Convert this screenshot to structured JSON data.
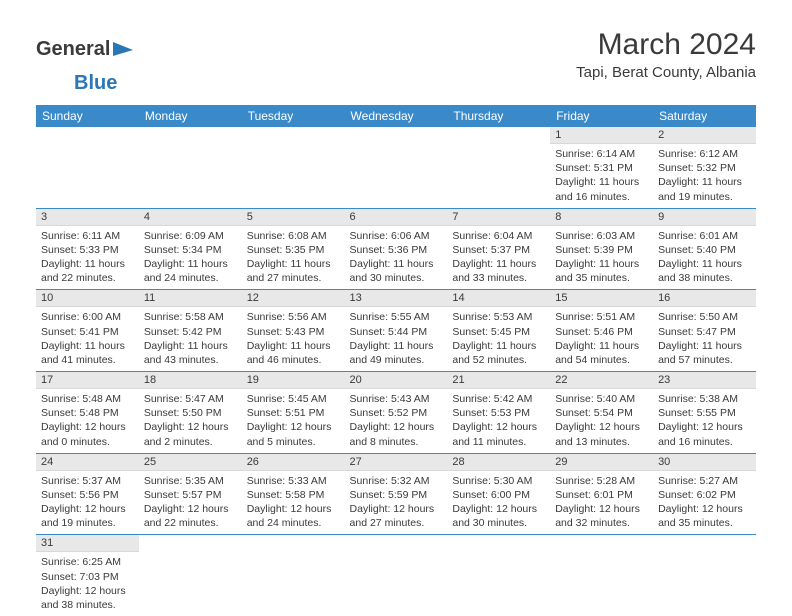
{
  "logo": {
    "text_general": "General",
    "text_blue": "Blue",
    "icon_color": "#2a77b8"
  },
  "header": {
    "title": "March 2024",
    "location": "Tapi, Berat County, Albania"
  },
  "colors": {
    "header_bg": "#3a89c9",
    "header_text": "#ffffff",
    "daynum_bg": "#e8e8e8",
    "border": "#3a89c9",
    "body_text": "#3a3a3a"
  },
  "day_labels": [
    "Sunday",
    "Monday",
    "Tuesday",
    "Wednesday",
    "Thursday",
    "Friday",
    "Saturday"
  ],
  "weeks": [
    [
      null,
      null,
      null,
      null,
      null,
      {
        "n": "1",
        "sunrise": "6:14 AM",
        "sunset": "5:31 PM",
        "dl": "11 hours and 16 minutes."
      },
      {
        "n": "2",
        "sunrise": "6:12 AM",
        "sunset": "5:32 PM",
        "dl": "11 hours and 19 minutes."
      }
    ],
    [
      {
        "n": "3",
        "sunrise": "6:11 AM",
        "sunset": "5:33 PM",
        "dl": "11 hours and 22 minutes."
      },
      {
        "n": "4",
        "sunrise": "6:09 AM",
        "sunset": "5:34 PM",
        "dl": "11 hours and 24 minutes."
      },
      {
        "n": "5",
        "sunrise": "6:08 AM",
        "sunset": "5:35 PM",
        "dl": "11 hours and 27 minutes."
      },
      {
        "n": "6",
        "sunrise": "6:06 AM",
        "sunset": "5:36 PM",
        "dl": "11 hours and 30 minutes."
      },
      {
        "n": "7",
        "sunrise": "6:04 AM",
        "sunset": "5:37 PM",
        "dl": "11 hours and 33 minutes."
      },
      {
        "n": "8",
        "sunrise": "6:03 AM",
        "sunset": "5:39 PM",
        "dl": "11 hours and 35 minutes."
      },
      {
        "n": "9",
        "sunrise": "6:01 AM",
        "sunset": "5:40 PM",
        "dl": "11 hours and 38 minutes."
      }
    ],
    [
      {
        "n": "10",
        "sunrise": "6:00 AM",
        "sunset": "5:41 PM",
        "dl": "11 hours and 41 minutes."
      },
      {
        "n": "11",
        "sunrise": "5:58 AM",
        "sunset": "5:42 PM",
        "dl": "11 hours and 43 minutes."
      },
      {
        "n": "12",
        "sunrise": "5:56 AM",
        "sunset": "5:43 PM",
        "dl": "11 hours and 46 minutes."
      },
      {
        "n": "13",
        "sunrise": "5:55 AM",
        "sunset": "5:44 PM",
        "dl": "11 hours and 49 minutes."
      },
      {
        "n": "14",
        "sunrise": "5:53 AM",
        "sunset": "5:45 PM",
        "dl": "11 hours and 52 minutes."
      },
      {
        "n": "15",
        "sunrise": "5:51 AM",
        "sunset": "5:46 PM",
        "dl": "11 hours and 54 minutes."
      },
      {
        "n": "16",
        "sunrise": "5:50 AM",
        "sunset": "5:47 PM",
        "dl": "11 hours and 57 minutes."
      }
    ],
    [
      {
        "n": "17",
        "sunrise": "5:48 AM",
        "sunset": "5:48 PM",
        "dl": "12 hours and 0 minutes."
      },
      {
        "n": "18",
        "sunrise": "5:47 AM",
        "sunset": "5:50 PM",
        "dl": "12 hours and 2 minutes."
      },
      {
        "n": "19",
        "sunrise": "5:45 AM",
        "sunset": "5:51 PM",
        "dl": "12 hours and 5 minutes."
      },
      {
        "n": "20",
        "sunrise": "5:43 AM",
        "sunset": "5:52 PM",
        "dl": "12 hours and 8 minutes."
      },
      {
        "n": "21",
        "sunrise": "5:42 AM",
        "sunset": "5:53 PM",
        "dl": "12 hours and 11 minutes."
      },
      {
        "n": "22",
        "sunrise": "5:40 AM",
        "sunset": "5:54 PM",
        "dl": "12 hours and 13 minutes."
      },
      {
        "n": "23",
        "sunrise": "5:38 AM",
        "sunset": "5:55 PM",
        "dl": "12 hours and 16 minutes."
      }
    ],
    [
      {
        "n": "24",
        "sunrise": "5:37 AM",
        "sunset": "5:56 PM",
        "dl": "12 hours and 19 minutes."
      },
      {
        "n": "25",
        "sunrise": "5:35 AM",
        "sunset": "5:57 PM",
        "dl": "12 hours and 22 minutes."
      },
      {
        "n": "26",
        "sunrise": "5:33 AM",
        "sunset": "5:58 PM",
        "dl": "12 hours and 24 minutes."
      },
      {
        "n": "27",
        "sunrise": "5:32 AM",
        "sunset": "5:59 PM",
        "dl": "12 hours and 27 minutes."
      },
      {
        "n": "28",
        "sunrise": "5:30 AM",
        "sunset": "6:00 PM",
        "dl": "12 hours and 30 minutes."
      },
      {
        "n": "29",
        "sunrise": "5:28 AM",
        "sunset": "6:01 PM",
        "dl": "12 hours and 32 minutes."
      },
      {
        "n": "30",
        "sunrise": "5:27 AM",
        "sunset": "6:02 PM",
        "dl": "12 hours and 35 minutes."
      }
    ],
    [
      {
        "n": "31",
        "sunrise": "6:25 AM",
        "sunset": "7:03 PM",
        "dl": "12 hours and 38 minutes."
      },
      null,
      null,
      null,
      null,
      null,
      null
    ]
  ]
}
